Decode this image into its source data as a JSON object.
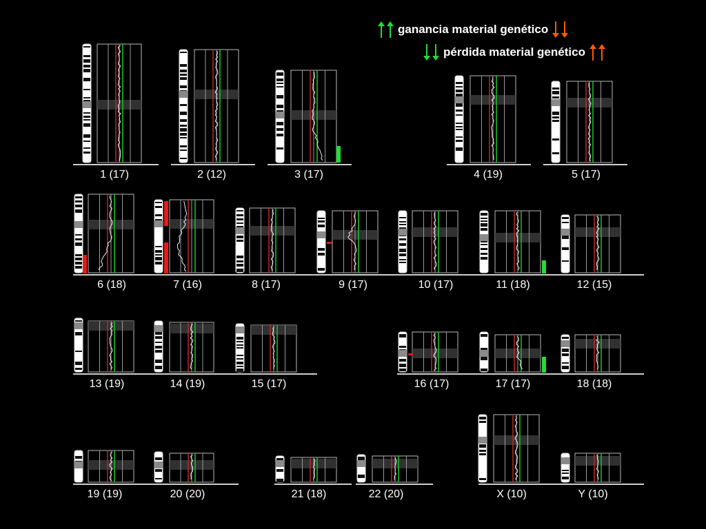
{
  "legend": {
    "gain_text": "ganancia material genético",
    "loss_text": "pérdida material genético",
    "colors": {
      "green": "#22dd33",
      "orange": "#ff5a00",
      "red": "#e21b1b",
      "trace_green": "#18c828",
      "trace_red": "#c0282a"
    }
  },
  "chromosomes": [
    {
      "id": "chr-1",
      "label": "1 (17)"
    },
    {
      "id": "chr-2",
      "label": "2 (12)"
    },
    {
      "id": "chr-3",
      "label": "3 (17)"
    },
    {
      "id": "chr-4",
      "label": "4 (19)"
    },
    {
      "id": "chr-5",
      "label": "5 (17)"
    },
    {
      "id": "chr-6",
      "label": "6 (18)"
    },
    {
      "id": "chr-7",
      "label": "7 (16)"
    },
    {
      "id": "chr-8",
      "label": "8 (17)"
    },
    {
      "id": "chr-9",
      "label": "9 (17)"
    },
    {
      "id": "chr-10",
      "label": "10 (17)"
    },
    {
      "id": "chr-11",
      "label": "11 (18)"
    },
    {
      "id": "chr-12",
      "label": "12 (15)"
    },
    {
      "id": "chr-13",
      "label": "13 (19)"
    },
    {
      "id": "chr-14",
      "label": "14 (19)"
    },
    {
      "id": "chr-15",
      "label": "15 (17)"
    },
    {
      "id": "chr-16",
      "label": "16 (17)"
    },
    {
      "id": "chr-17",
      "label": "17 (17)"
    },
    {
      "id": "chr-18",
      "label": "18 (18)"
    },
    {
      "id": "chr-19",
      "label": "19 (19)"
    },
    {
      "id": "chr-20",
      "label": "20 (20)"
    },
    {
      "id": "chr-21",
      "label": "21 (18)"
    },
    {
      "id": "chr-22",
      "label": "22 (20)"
    },
    {
      "id": "chr-x",
      "label": "X (10)"
    },
    {
      "id": "chr-y",
      "label": "Y (10)"
    }
  ]
}
